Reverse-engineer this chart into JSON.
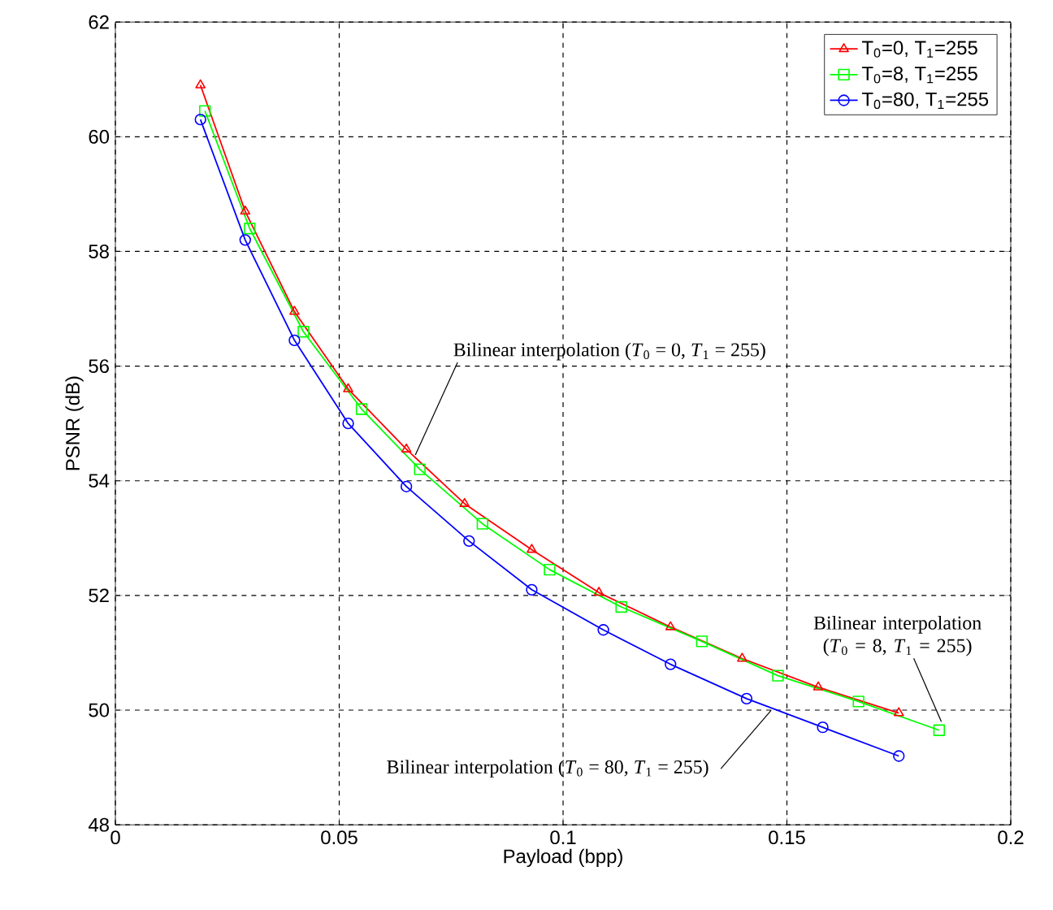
{
  "chart_data": {
    "type": "line",
    "xlabel": "Payload (bpp)",
    "ylabel": "PSNR (dB)",
    "xlim": [
      0,
      0.2
    ],
    "ylim": [
      48,
      62
    ],
    "xticks": [
      0,
      0.05,
      0.1,
      0.15,
      0.2
    ],
    "yticks": [
      48,
      50,
      52,
      54,
      56,
      58,
      60,
      62
    ],
    "grid": true,
    "legend": "top right",
    "line_style": "solid",
    "series": [
      {
        "name": "T$_{0}$=0, T$_{1}$=255",
        "color": "#ff0000",
        "marker": "triangle",
        "x": [
          0.019,
          0.029,
          0.04,
          0.052,
          0.065,
          0.078,
          0.093,
          0.108,
          0.124,
          0.14,
          0.157,
          0.175
        ],
        "values": [
          60.9,
          58.7,
          56.95,
          55.6,
          54.55,
          53.6,
          52.8,
          52.05,
          51.45,
          50.9,
          50.4,
          49.95
        ]
      },
      {
        "name": "T$_{0}$=8, T$_{1}$=255",
        "color": "#00ff00",
        "marker": "square",
        "x": [
          0.02,
          0.03,
          0.042,
          0.055,
          0.068,
          0.082,
          0.097,
          0.113,
          0.131,
          0.148,
          0.166,
          0.184
        ],
        "values": [
          60.45,
          58.4,
          56.6,
          55.25,
          54.2,
          53.25,
          52.45,
          51.8,
          51.2,
          50.6,
          50.15,
          49.65
        ]
      },
      {
        "name": "T$_{0}$=80, T$_{1}$=255",
        "color": "#0000ff",
        "marker": "circle",
        "x": [
          0.019,
          0.029,
          0.04,
          0.052,
          0.065,
          0.079,
          0.093,
          0.109,
          0.124,
          0.141,
          0.158,
          0.175
        ],
        "values": [
          60.3,
          58.2,
          56.45,
          55.0,
          53.9,
          52.95,
          52.1,
          51.4,
          50.8,
          50.2,
          49.7,
          49.2
        ]
      }
    ],
    "annotations": [
      {
        "text": "Bilinear interpolation (*T*$_{0}$ = 0, *T*$_{1}$ = 255)",
        "x": 0.067,
        "y": 54.45
      },
      {
        "text": "Bilinear interpolation (*T*$_{0}$ = 8, *T*$_{1}$ = 255)",
        "x": 0.1845,
        "y": 49.8
      },
      {
        "text": "Bilinear interpolation (*T*$_{0}$ = 80, *T*$_{1}$ = 255)",
        "x": 0.1465,
        "y": 50.0
      }
    ]
  }
}
